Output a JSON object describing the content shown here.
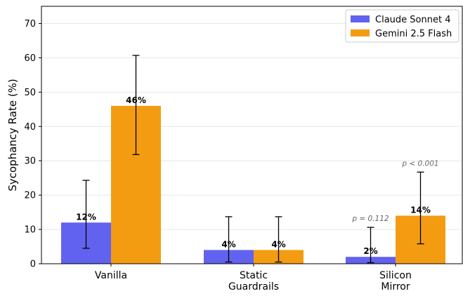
{
  "chart_data": {
    "type": "bar",
    "categories": [
      [
        "Vanilla"
      ],
      [
        "Static",
        "Guardrails"
      ],
      [
        "Silicon",
        "Mirror"
      ]
    ],
    "series": [
      {
        "name": "Claude Sonnet 4",
        "color": "#6262f0",
        "values": [
          12,
          4,
          2
        ],
        "labels": [
          "12%",
          "4%",
          "2%"
        ],
        "err_low": [
          4.5,
          0.5,
          0.3
        ],
        "err_high": [
          24.3,
          13.7,
          10.6
        ]
      },
      {
        "name": "Gemini 2.5 Flash",
        "color": "#f39c12",
        "values": [
          46,
          4,
          14
        ],
        "labels": [
          "46%",
          "4%",
          "14%"
        ],
        "err_low": [
          31.8,
          0.5,
          5.8
        ],
        "err_high": [
          60.7,
          13.7,
          26.7
        ]
      }
    ],
    "ylabel": "Sycophancy Rate (%)",
    "ylim": [
      0,
      75
    ],
    "yticks": [
      0,
      10,
      20,
      30,
      40,
      50,
      60,
      70
    ],
    "grid": "horizontal",
    "legend_position": "top-right",
    "annotations": [
      {
        "text": "p = 0.112",
        "category": 2,
        "series": 0
      },
      {
        "text": "p < 0.001",
        "category": 2,
        "series": 1
      }
    ]
  }
}
